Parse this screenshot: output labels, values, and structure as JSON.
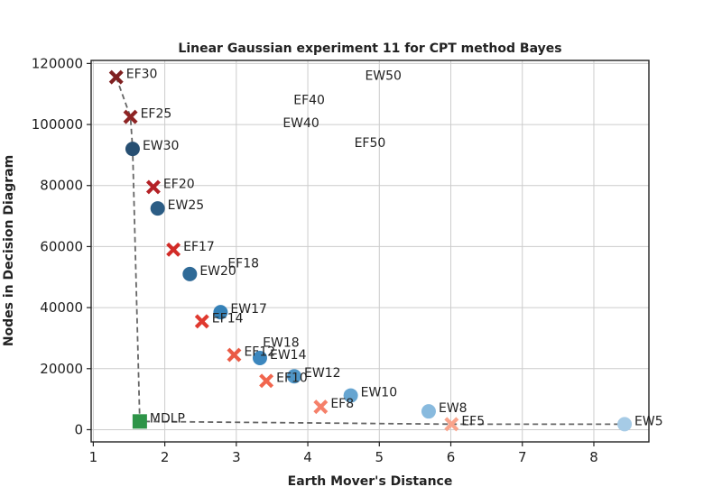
{
  "chart_data": {
    "type": "scatter",
    "title": "Linear Gaussian experiment 11 for CPT method Bayes",
    "xlabel": "Earth Mover's Distance",
    "ylabel": "Nodes in Decision Diagram",
    "xlim": [
      0.97,
      8.77
    ],
    "ylim": [
      -4000,
      121000
    ],
    "x_ticks": [
      1,
      2,
      3,
      4,
      5,
      6,
      7,
      8
    ],
    "y_ticks": [
      0,
      20000,
      40000,
      60000,
      80000,
      100000,
      120000
    ],
    "grid": true,
    "frontier_line": {
      "style": "dashed",
      "color": "#666666",
      "points": [
        "EF30",
        "EF25",
        "EW30",
        "MDLP",
        "EF5",
        "EW5"
      ]
    },
    "series": [
      {
        "marker": "x",
        "points": [
          {
            "label": "EF30",
            "x": 1.32,
            "y": 115500,
            "color": "#7f2021"
          },
          {
            "label": "EF25",
            "x": 1.52,
            "y": 102500,
            "color": "#8e2424"
          },
          {
            "label": "EF20",
            "x": 1.84,
            "y": 79500,
            "color": "#b42126"
          },
          {
            "label": "EF17",
            "x": 2.12,
            "y": 59000,
            "color": "#d22b27"
          },
          {
            "label": "EF14",
            "x": 2.52,
            "y": 35500,
            "color": "#e0392f"
          },
          {
            "label": "EF12",
            "x": 2.97,
            "y": 24500,
            "color": "#ea5b46"
          },
          {
            "label": "EF10",
            "x": 3.42,
            "y": 16000,
            "color": "#f1664e"
          },
          {
            "label": "EF8",
            "x": 4.18,
            "y": 7500,
            "color": "#f5806a"
          },
          {
            "label": "EF5",
            "x": 6.01,
            "y": 1800,
            "color": "#f9a48c"
          }
        ]
      },
      {
        "marker": "circle",
        "points": [
          {
            "label": "EW30",
            "x": 1.55,
            "y": 92000,
            "color": "#274f72"
          },
          {
            "label": "EW25",
            "x": 1.9,
            "y": 72500,
            "color": "#2c5d85"
          },
          {
            "label": "EW20",
            "x": 2.35,
            "y": 51000,
            "color": "#2f6a97"
          },
          {
            "label": "EW17",
            "x": 2.78,
            "y": 38500,
            "color": "#3581b7"
          },
          {
            "label": "EW14",
            "x": 3.33,
            "y": 23500,
            "color": "#3c87be"
          },
          {
            "label": "EW12",
            "x": 3.81,
            "y": 17500,
            "color": "#4f95c6"
          },
          {
            "label": "EW10",
            "x": 4.6,
            "y": 11200,
            "color": "#66a5d1"
          },
          {
            "label": "EW8",
            "x": 5.69,
            "y": 6000,
            "color": "#88bade"
          },
          {
            "label": "EW5",
            "x": 8.43,
            "y": 1800,
            "color": "#a6cbe6"
          }
        ]
      },
      {
        "marker": "square",
        "points": [
          {
            "label": "MDLP",
            "x": 1.65,
            "y": 2700,
            "color": "#2e9448"
          }
        ]
      },
      {
        "marker": "none",
        "points": [
          {
            "label": "EW50",
            "x": 4.8,
            "y": 115000
          },
          {
            "label": "EF40",
            "x": 3.8,
            "y": 107000
          },
          {
            "label": "EW40",
            "x": 3.65,
            "y": 99500
          },
          {
            "label": "EF50",
            "x": 4.65,
            "y": 93000
          },
          {
            "label": "EF18",
            "x": 2.88,
            "y": 53500
          },
          {
            "label": "EW18",
            "x": 3.37,
            "y": 27500
          }
        ]
      }
    ]
  }
}
